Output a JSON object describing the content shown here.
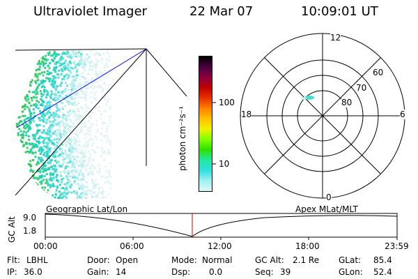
{
  "header": {
    "instrument": "Ultraviolet Imager",
    "date": "22 Mar 07",
    "time": "10:09:01 UT"
  },
  "colorbar": {
    "unit_label": "photon cm⁻²s⁻¹",
    "ticks": [
      "100",
      "10"
    ],
    "colors": [
      "#000000",
      "#4a0040",
      "#8a0040",
      "#c00000",
      "#e83000",
      "#ff8000",
      "#ffc000",
      "#f0f000",
      "#80ff00",
      "#30e000",
      "#20e8a0",
      "#30e0e0",
      "#a0f0f0",
      "#e0f8f8"
    ]
  },
  "polar_plot": {
    "mlt_labels": [
      "12",
      "18",
      "6",
      "0"
    ],
    "lat_labels": [
      "60",
      "70",
      "80"
    ]
  },
  "timeline": {
    "left_label": "Geographic Lat/Lon",
    "right_label": "Apex MLat/MLT",
    "axis_label": "GC Alt",
    "y_ticks": [
      "9.0",
      "1.8"
    ],
    "x_ticks": [
      "00:00",
      "06:00",
      "12:00",
      "18:00",
      "23:59"
    ]
  },
  "footer": {
    "row1": [
      {
        "label": "Flt:",
        "value": "LBHL"
      },
      {
        "label": "Door:",
        "value": "Open"
      },
      {
        "label": "Mode:",
        "value": "Normal"
      },
      {
        "label": "GC Alt:",
        "value": "2.1 Re"
      },
      {
        "label": "GLat:",
        "value": "85.4"
      }
    ],
    "row2": [
      {
        "label": "IP:",
        "value": "36.0"
      },
      {
        "label": "Gain:",
        "value": "14"
      },
      {
        "label": "Dsp:",
        "value": "0.0"
      },
      {
        "label": "Seq:",
        "value": "39"
      },
      {
        "label": "GLon:",
        "value": "52.4"
      }
    ]
  }
}
